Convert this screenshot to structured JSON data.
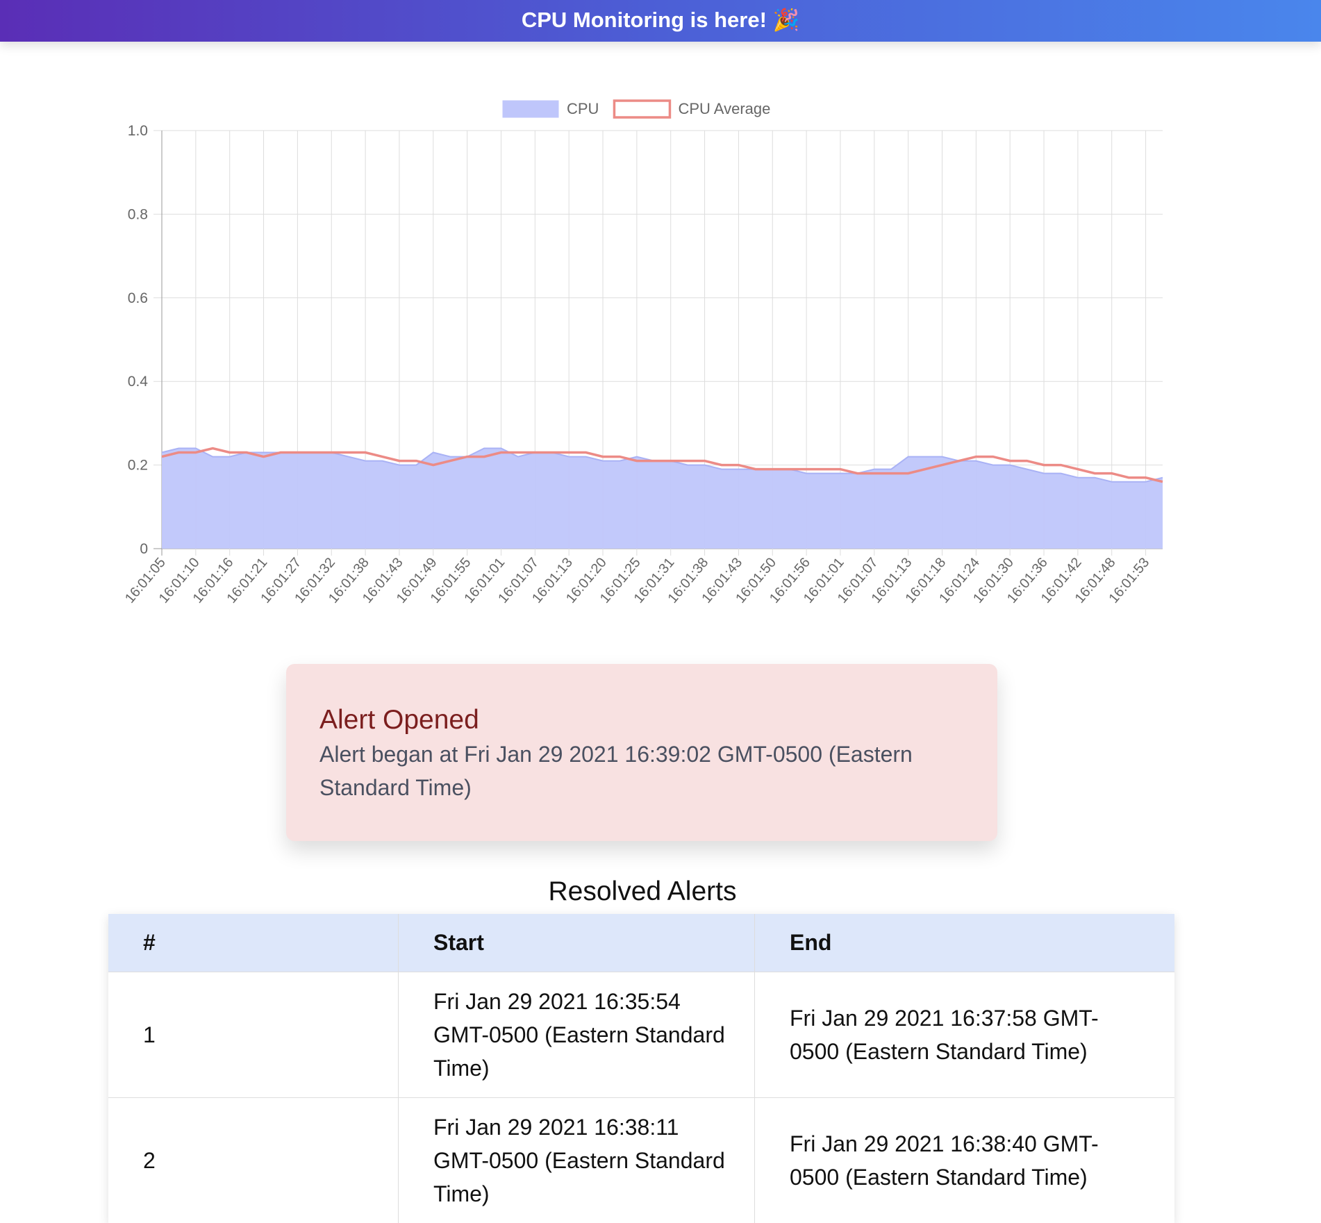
{
  "banner": {
    "text": "CPU Monitoring is here! 🎉"
  },
  "chart_data": {
    "type": "line",
    "categories": [
      "16:01:05",
      null,
      "16:01:10",
      null,
      "16:01:16",
      null,
      "16:01:21",
      null,
      "16:01:27",
      null,
      "16:01:32",
      null,
      "16:01:38",
      null,
      "16:01:43",
      null,
      "16:01:49",
      null,
      "16:01:55",
      null,
      "16:01:01",
      null,
      "16:01:07",
      null,
      "16:01:13",
      null,
      "16:01:20",
      null,
      "16:01:25",
      null,
      "16:01:31",
      null,
      "16:01:38",
      null,
      "16:01:43",
      null,
      "16:01:50",
      null,
      "16:01:56",
      null,
      "16:01:01",
      null,
      "16:01:07",
      null,
      "16:01:13",
      null,
      "16:01:18",
      null,
      "16:01:24",
      null,
      "16:01:30",
      null,
      "16:01:36",
      null,
      "16:01:42",
      null,
      "16:01:48",
      null,
      "16:01:53",
      null
    ],
    "series": [
      {
        "name": "CPU",
        "color": "#bfc6fb",
        "fill": true,
        "values": [
          0.23,
          0.24,
          0.24,
          0.22,
          0.22,
          0.23,
          0.23,
          0.23,
          0.23,
          0.23,
          0.23,
          0.22,
          0.21,
          0.21,
          0.2,
          0.2,
          0.23,
          0.22,
          0.22,
          0.24,
          0.24,
          0.22,
          0.23,
          0.23,
          0.22,
          0.22,
          0.21,
          0.21,
          0.22,
          0.21,
          0.21,
          0.2,
          0.2,
          0.19,
          0.19,
          0.19,
          0.19,
          0.19,
          0.18,
          0.18,
          0.18,
          0.18,
          0.19,
          0.19,
          0.22,
          0.22,
          0.22,
          0.21,
          0.21,
          0.2,
          0.2,
          0.19,
          0.18,
          0.18,
          0.17,
          0.17,
          0.16,
          0.16,
          0.16,
          0.17
        ]
      },
      {
        "name": "CPU Average",
        "color": "#ec8b86",
        "fill": false,
        "values": [
          0.22,
          0.23,
          0.23,
          0.24,
          0.23,
          0.23,
          0.22,
          0.23,
          0.23,
          0.23,
          0.23,
          0.23,
          0.23,
          0.22,
          0.21,
          0.21,
          0.2,
          0.21,
          0.22,
          0.22,
          0.23,
          0.23,
          0.23,
          0.23,
          0.23,
          0.23,
          0.22,
          0.22,
          0.21,
          0.21,
          0.21,
          0.21,
          0.21,
          0.2,
          0.2,
          0.19,
          0.19,
          0.19,
          0.19,
          0.19,
          0.19,
          0.18,
          0.18,
          0.18,
          0.18,
          0.19,
          0.2,
          0.21,
          0.22,
          0.22,
          0.21,
          0.21,
          0.2,
          0.2,
          0.19,
          0.18,
          0.18,
          0.17,
          0.17,
          0.16
        ]
      }
    ],
    "ylim": [
      0,
      1
    ],
    "yticks": [
      0,
      0.2,
      0.4,
      0.6,
      0.8,
      {
        "value": 1,
        "label": "1.0"
      }
    ],
    "grid": true,
    "legend": "top"
  },
  "alert": {
    "title": "Alert Opened",
    "message": "Alert began at Fri Jan 29 2021 16:39:02 GMT-0500 (Eastern Standard Time)"
  },
  "table": {
    "title": "Resolved Alerts",
    "header": [
      "#",
      "Start",
      "End"
    ],
    "rows": [
      [
        "1",
        "Fri Jan 29 2021 16:35:54 GMT-0500 (Eastern Standard Time)",
        "Fri Jan 29 2021 16:37:58 GMT-0500 (Eastern Standard Time)"
      ],
      [
        "2",
        "Fri Jan 29 2021 16:38:11 GMT-0500 (Eastern Standard Time)",
        "Fri Jan 29 2021 16:38:40 GMT-0500 (Eastern Standard Time)"
      ]
    ]
  }
}
